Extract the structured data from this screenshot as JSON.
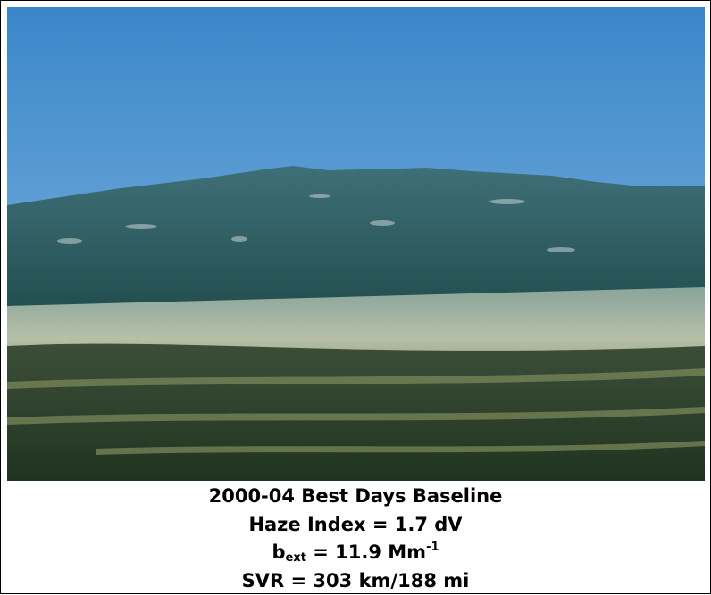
{
  "caption": {
    "line1": "2000-04 Best Days Baseline",
    "line2": "Haze Index = 1.7 dV",
    "line3": {
      "base": "b",
      "subscript": "ext",
      "text": " = 11.9 Mm",
      "superscript": "-1"
    },
    "line4": "SVR = 303 km/188 mi"
  }
}
